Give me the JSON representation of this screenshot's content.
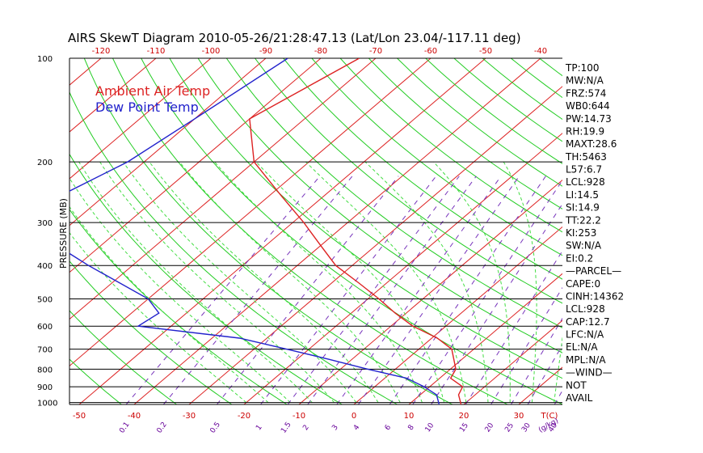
{
  "chart_data": {
    "type": "skewt",
    "title": "AIRS SkewT Diagram 2010-05-26/21:28:47.13 (Lat/Lon 23.04/-117.11 deg)",
    "ylabel": "PRESSURE (MB)",
    "pressure_ticks": [
      100,
      200,
      300,
      400,
      500,
      600,
      700,
      800,
      900,
      1000
    ],
    "top_temp_ticks": [
      -120,
      -110,
      -100,
      -90,
      -80,
      -70,
      -60,
      -50,
      -40
    ],
    "bottom_temp_ticks": [
      -50,
      -40,
      -30,
      -20,
      -10,
      0,
      10,
      20,
      30,
      40
    ],
    "temp_unit_label": "T(C)",
    "mixing_ratio_labels": [
      "0.1",
      "0.2",
      "0.5",
      "1",
      "1.5",
      "2",
      "3",
      "4",
      "6",
      "8",
      "10",
      "15",
      "20",
      "25",
      "30",
      "40"
    ],
    "mixing_ratio_unit": "(g/kg)",
    "legend": [
      {
        "name": "Ambient Air Temp",
        "color": "#dd2222"
      },
      {
        "name": "Dew Point Temp",
        "color": "#2222cc"
      }
    ],
    "ambient_air_temp": [
      {
        "p": 100,
        "t": -73
      },
      {
        "p": 150,
        "t": -80
      },
      {
        "p": 200,
        "t": -70
      },
      {
        "p": 250,
        "t": -58
      },
      {
        "p": 300,
        "t": -48
      },
      {
        "p": 350,
        "t": -40
      },
      {
        "p": 400,
        "t": -33
      },
      {
        "p": 450,
        "t": -25
      },
      {
        "p": 500,
        "t": -18
      },
      {
        "p": 550,
        "t": -12
      },
      {
        "p": 600,
        "t": -6
      },
      {
        "p": 650,
        "t": 1
      },
      {
        "p": 700,
        "t": 6
      },
      {
        "p": 800,
        "t": 11
      },
      {
        "p": 850,
        "t": 12
      },
      {
        "p": 900,
        "t": 16
      },
      {
        "p": 950,
        "t": 17
      },
      {
        "p": 1000,
        "t": 19
      },
      {
        "p": 1013,
        "t": 19.5
      }
    ],
    "dew_point_temp": [
      {
        "p": 100,
        "t": -86
      },
      {
        "p": 150,
        "t": -90
      },
      {
        "p": 200,
        "t": -93
      },
      {
        "p": 250,
        "t": -98
      },
      {
        "p": 300,
        "t": -100
      },
      {
        "p": 350,
        "t": -88
      },
      {
        "p": 400,
        "t": -78
      },
      {
        "p": 500,
        "t": -60
      },
      {
        "p": 550,
        "t": -55
      },
      {
        "p": 600,
        "t": -56
      },
      {
        "p": 650,
        "t": -35
      },
      {
        "p": 700,
        "t": -24
      },
      {
        "p": 750,
        "t": -14
      },
      {
        "p": 800,
        "t": -5
      },
      {
        "p": 850,
        "t": 4
      },
      {
        "p": 900,
        "t": 9
      },
      {
        "p": 950,
        "t": 13
      },
      {
        "p": 1000,
        "t": 15
      },
      {
        "p": 1013,
        "t": 15.5
      }
    ],
    "indices": [
      "TP:100",
      "MW:N/A",
      "FRZ:574",
      "WB0:644",
      "PW:14.73",
      "RH:19.9",
      "MAXT:28.6",
      "TH:5463",
      "L57:6.7",
      "LCL:928",
      "LI:14.5",
      "SI:14.9",
      "TT:22.2",
      "KI:253",
      "SW:N/A",
      "EI:0.2",
      "—PARCEL—",
      "CAPE:0",
      "CINH:14362",
      "LCL:928",
      "CAP:12.7",
      "LFC:N/A",
      "EL:N/A",
      "MPL:N/A",
      "—WIND—",
      "NOT",
      "AVAIL"
    ],
    "colors": {
      "isotherm": "#dd2222",
      "dry_adiabat": "#22cc22",
      "moist_adiabat": "#44dd44",
      "mixing_ratio": "#7733bb",
      "isobar": "#000000",
      "temperature": "#dd2222",
      "dewpoint": "#2222cc"
    }
  }
}
